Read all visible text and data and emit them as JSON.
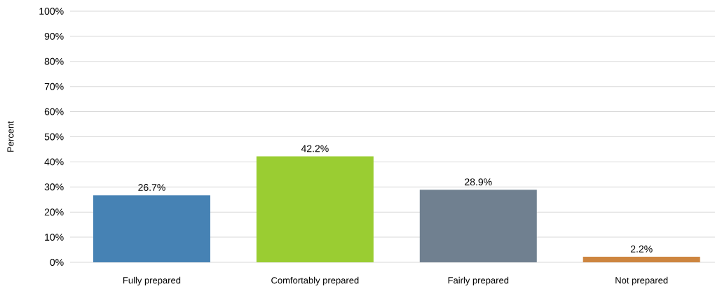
{
  "chart_data": {
    "type": "bar",
    "ylabel": "Percent",
    "categories": [
      "Fully prepared",
      "Comfortably prepared",
      "Fairly prepared",
      "Not prepared"
    ],
    "values": [
      26.7,
      42.2,
      28.9,
      2.2
    ],
    "colors": [
      "#4682b4",
      "#9acd32",
      "#708090",
      "#cd853f"
    ],
    "value_labels": [
      "26.7%",
      "42.2%",
      "28.9%",
      "2.2%"
    ],
    "ylim": [
      0,
      100
    ],
    "yticks": [
      {
        "value": 0,
        "label": "0%"
      },
      {
        "value": 10,
        "label": "10%"
      },
      {
        "value": 20,
        "label": "20%"
      },
      {
        "value": 30,
        "label": "30%"
      },
      {
        "value": 40,
        "label": "40%"
      },
      {
        "value": 50,
        "label": "50%"
      },
      {
        "value": 60,
        "label": "60%"
      },
      {
        "value": 70,
        "label": "70%"
      },
      {
        "value": 80,
        "label": "80%"
      },
      {
        "value": 90,
        "label": "90%"
      },
      {
        "value": 100,
        "label": "100%"
      }
    ],
    "grid": "y"
  }
}
